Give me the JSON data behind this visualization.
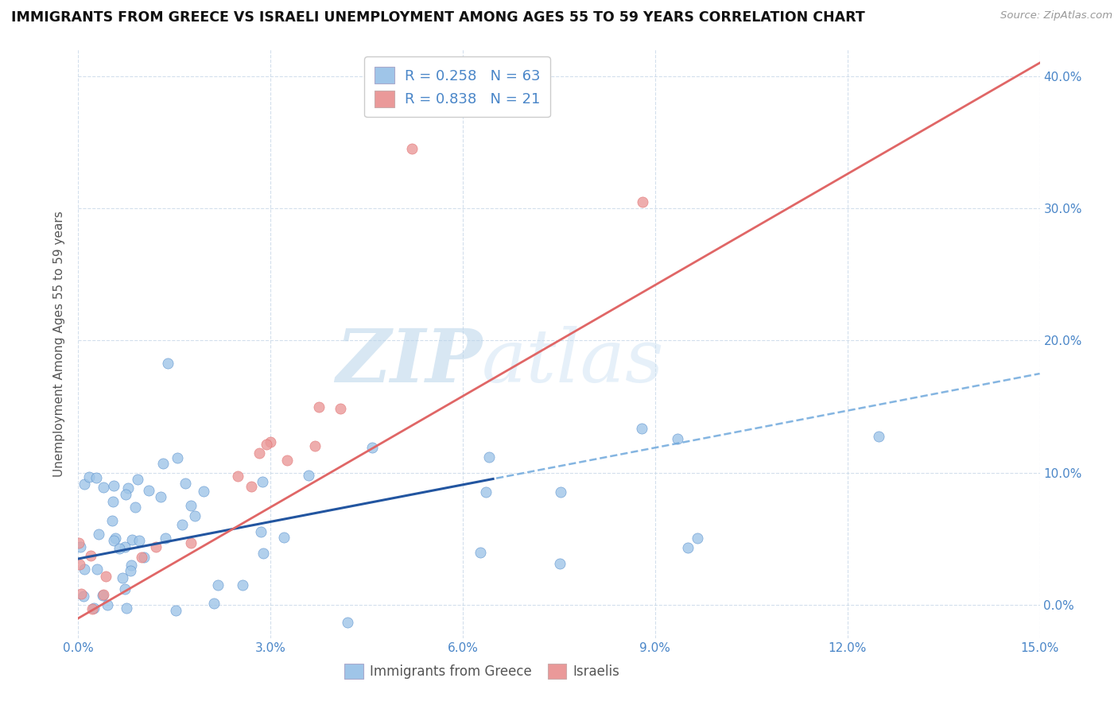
{
  "title": "IMMIGRANTS FROM GREECE VS ISRAELI UNEMPLOYMENT AMONG AGES 55 TO 59 YEARS CORRELATION CHART",
  "source": "Source: ZipAtlas.com",
  "ylabel_text": "Unemployment Among Ages 55 to 59 years",
  "xlim": [
    0.0,
    0.15
  ],
  "ylim": [
    -0.025,
    0.42
  ],
  "xticks": [
    0.0,
    0.03,
    0.06,
    0.09,
    0.12,
    0.15
  ],
  "yticks": [
    0.0,
    0.1,
    0.2,
    0.3,
    0.4
  ],
  "color_blue": "#9fc5e8",
  "color_blue_line": "#4a86c8",
  "color_pink": "#ea9999",
  "color_pink_line": "#e06666",
  "watermark_color": "#cce0f0"
}
